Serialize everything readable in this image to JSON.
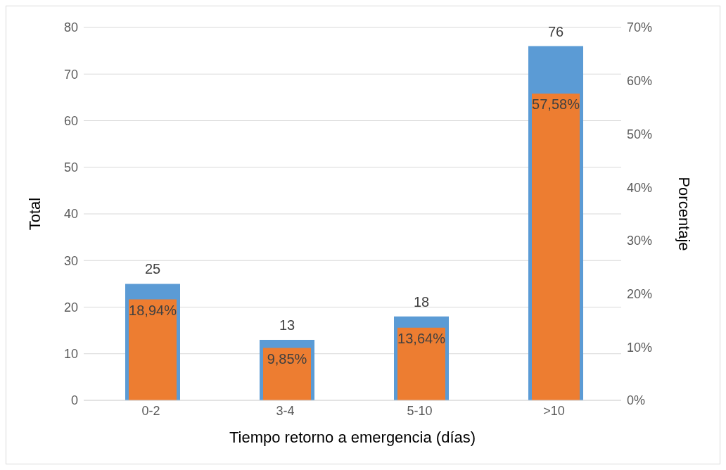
{
  "chart_data": {
    "type": "bar",
    "xlabel": "Tiempo retorno a emergencia (días)",
    "ylabel": "Total",
    "y2label": "Porcentaje",
    "categories": [
      "0-2",
      "3-4",
      "5-10",
      ">10"
    ],
    "series": [
      {
        "color": "#5b9bd5",
        "values": [
          25,
          13,
          18,
          76
        ],
        "value_labels": [
          "25",
          "13",
          "18",
          "76"
        ]
      },
      {
        "color": "#ed7d31",
        "axis": "y2",
        "values": [
          18.94,
          9.85,
          13.64,
          57.58
        ],
        "value_labels": [
          "18,94%",
          "9,85%",
          "13,64%",
          "57,58%"
        ]
      }
    ],
    "ylim": [
      0,
      80
    ],
    "yticks": [
      0,
      10,
      20,
      30,
      40,
      50,
      60,
      70,
      80
    ],
    "y2lim": [
      0,
      70
    ],
    "y2ticks": [
      {
        "value": 0,
        "label": "0%"
      },
      {
        "value": 10,
        "label": "10%"
      },
      {
        "value": 20,
        "label": "20%"
      },
      {
        "value": 30,
        "label": "30%"
      },
      {
        "value": 40,
        "label": "40%"
      },
      {
        "value": 50,
        "label": "50%"
      },
      {
        "value": 60,
        "label": "60%"
      },
      {
        "value": 70,
        "label": "70%"
      }
    ],
    "grid": "y"
  }
}
